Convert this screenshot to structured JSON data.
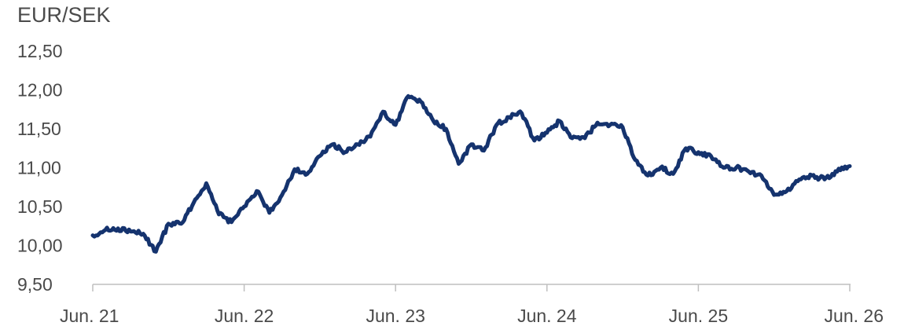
{
  "chart_data": {
    "type": "line",
    "title": "EUR/SEK",
    "xlabel": "",
    "ylabel": "",
    "ylim": [
      9.5,
      12.5
    ],
    "xlim": [
      "2021-06",
      "2026-06"
    ],
    "y_ticks": [
      "12,50",
      "12,00",
      "11,50",
      "11,00",
      "10,50",
      "10,00",
      "9,50"
    ],
    "y_tick_values": [
      12.5,
      12.0,
      11.5,
      11.0,
      10.5,
      10.0,
      9.5
    ],
    "x_ticks": [
      "Jun. 21",
      "Jun. 22",
      "Jun. 23",
      "Jun. 24",
      "Jun. 25",
      "Jun. 26"
    ],
    "x_tick_values": [
      "2021-06",
      "2022-06",
      "2023-06",
      "2024-06",
      "2025-06",
      "2026-06"
    ],
    "grid": false,
    "colors": {
      "line": "#15336e",
      "text": "#4a4a4a",
      "axis": "#bfbfbf"
    },
    "series": [
      {
        "x": [
          "2021-06",
          "2021-07",
          "2021-08",
          "2021-09",
          "2021-10",
          "2021-11",
          "2021-12",
          "2022-01",
          "2022-02",
          "2022-03",
          "2022-04",
          "2022-05",
          "2022-06",
          "2022-07",
          "2022-08",
          "2022-09",
          "2022-10",
          "2022-11",
          "2022-12",
          "2023-01",
          "2023-02",
          "2023-03",
          "2023-04",
          "2023-05",
          "2023-06",
          "2023-07",
          "2023-08",
          "2023-09",
          "2023-10",
          "2023-11",
          "2023-12",
          "2024-01",
          "2024-02",
          "2024-03",
          "2024-04",
          "2024-05",
          "2024-06",
          "2024-07",
          "2024-08",
          "2024-09",
          "2024-10",
          "2024-11",
          "2024-12",
          "2025-01",
          "2025-02",
          "2025-03",
          "2025-04",
          "2025-05",
          "2025-06",
          "2025-07",
          "2025-08",
          "2025-09",
          "2025-10",
          "2025-11",
          "2025-12",
          "2026-01",
          "2026-02",
          "2026-03",
          "2026-04",
          "2026-05",
          "2026-06"
        ],
        "values": [
          10.13,
          10.2,
          10.22,
          10.18,
          10.15,
          9.92,
          10.28,
          10.28,
          10.55,
          10.8,
          10.4,
          10.3,
          10.5,
          10.7,
          10.42,
          10.65,
          10.98,
          10.92,
          11.15,
          11.3,
          11.2,
          11.3,
          11.4,
          11.72,
          11.55,
          11.92,
          11.85,
          11.6,
          11.5,
          11.05,
          11.3,
          11.22,
          11.55,
          11.65,
          11.7,
          11.35,
          11.45,
          11.6,
          11.38,
          11.38,
          11.58,
          11.55,
          11.52,
          11.1,
          10.9,
          11.0,
          10.92,
          11.25,
          11.2,
          11.15,
          11.0,
          11.0,
          10.95,
          10.9,
          10.65,
          10.7,
          10.85,
          10.9,
          10.85,
          10.95,
          11.02
        ]
      }
    ]
  }
}
